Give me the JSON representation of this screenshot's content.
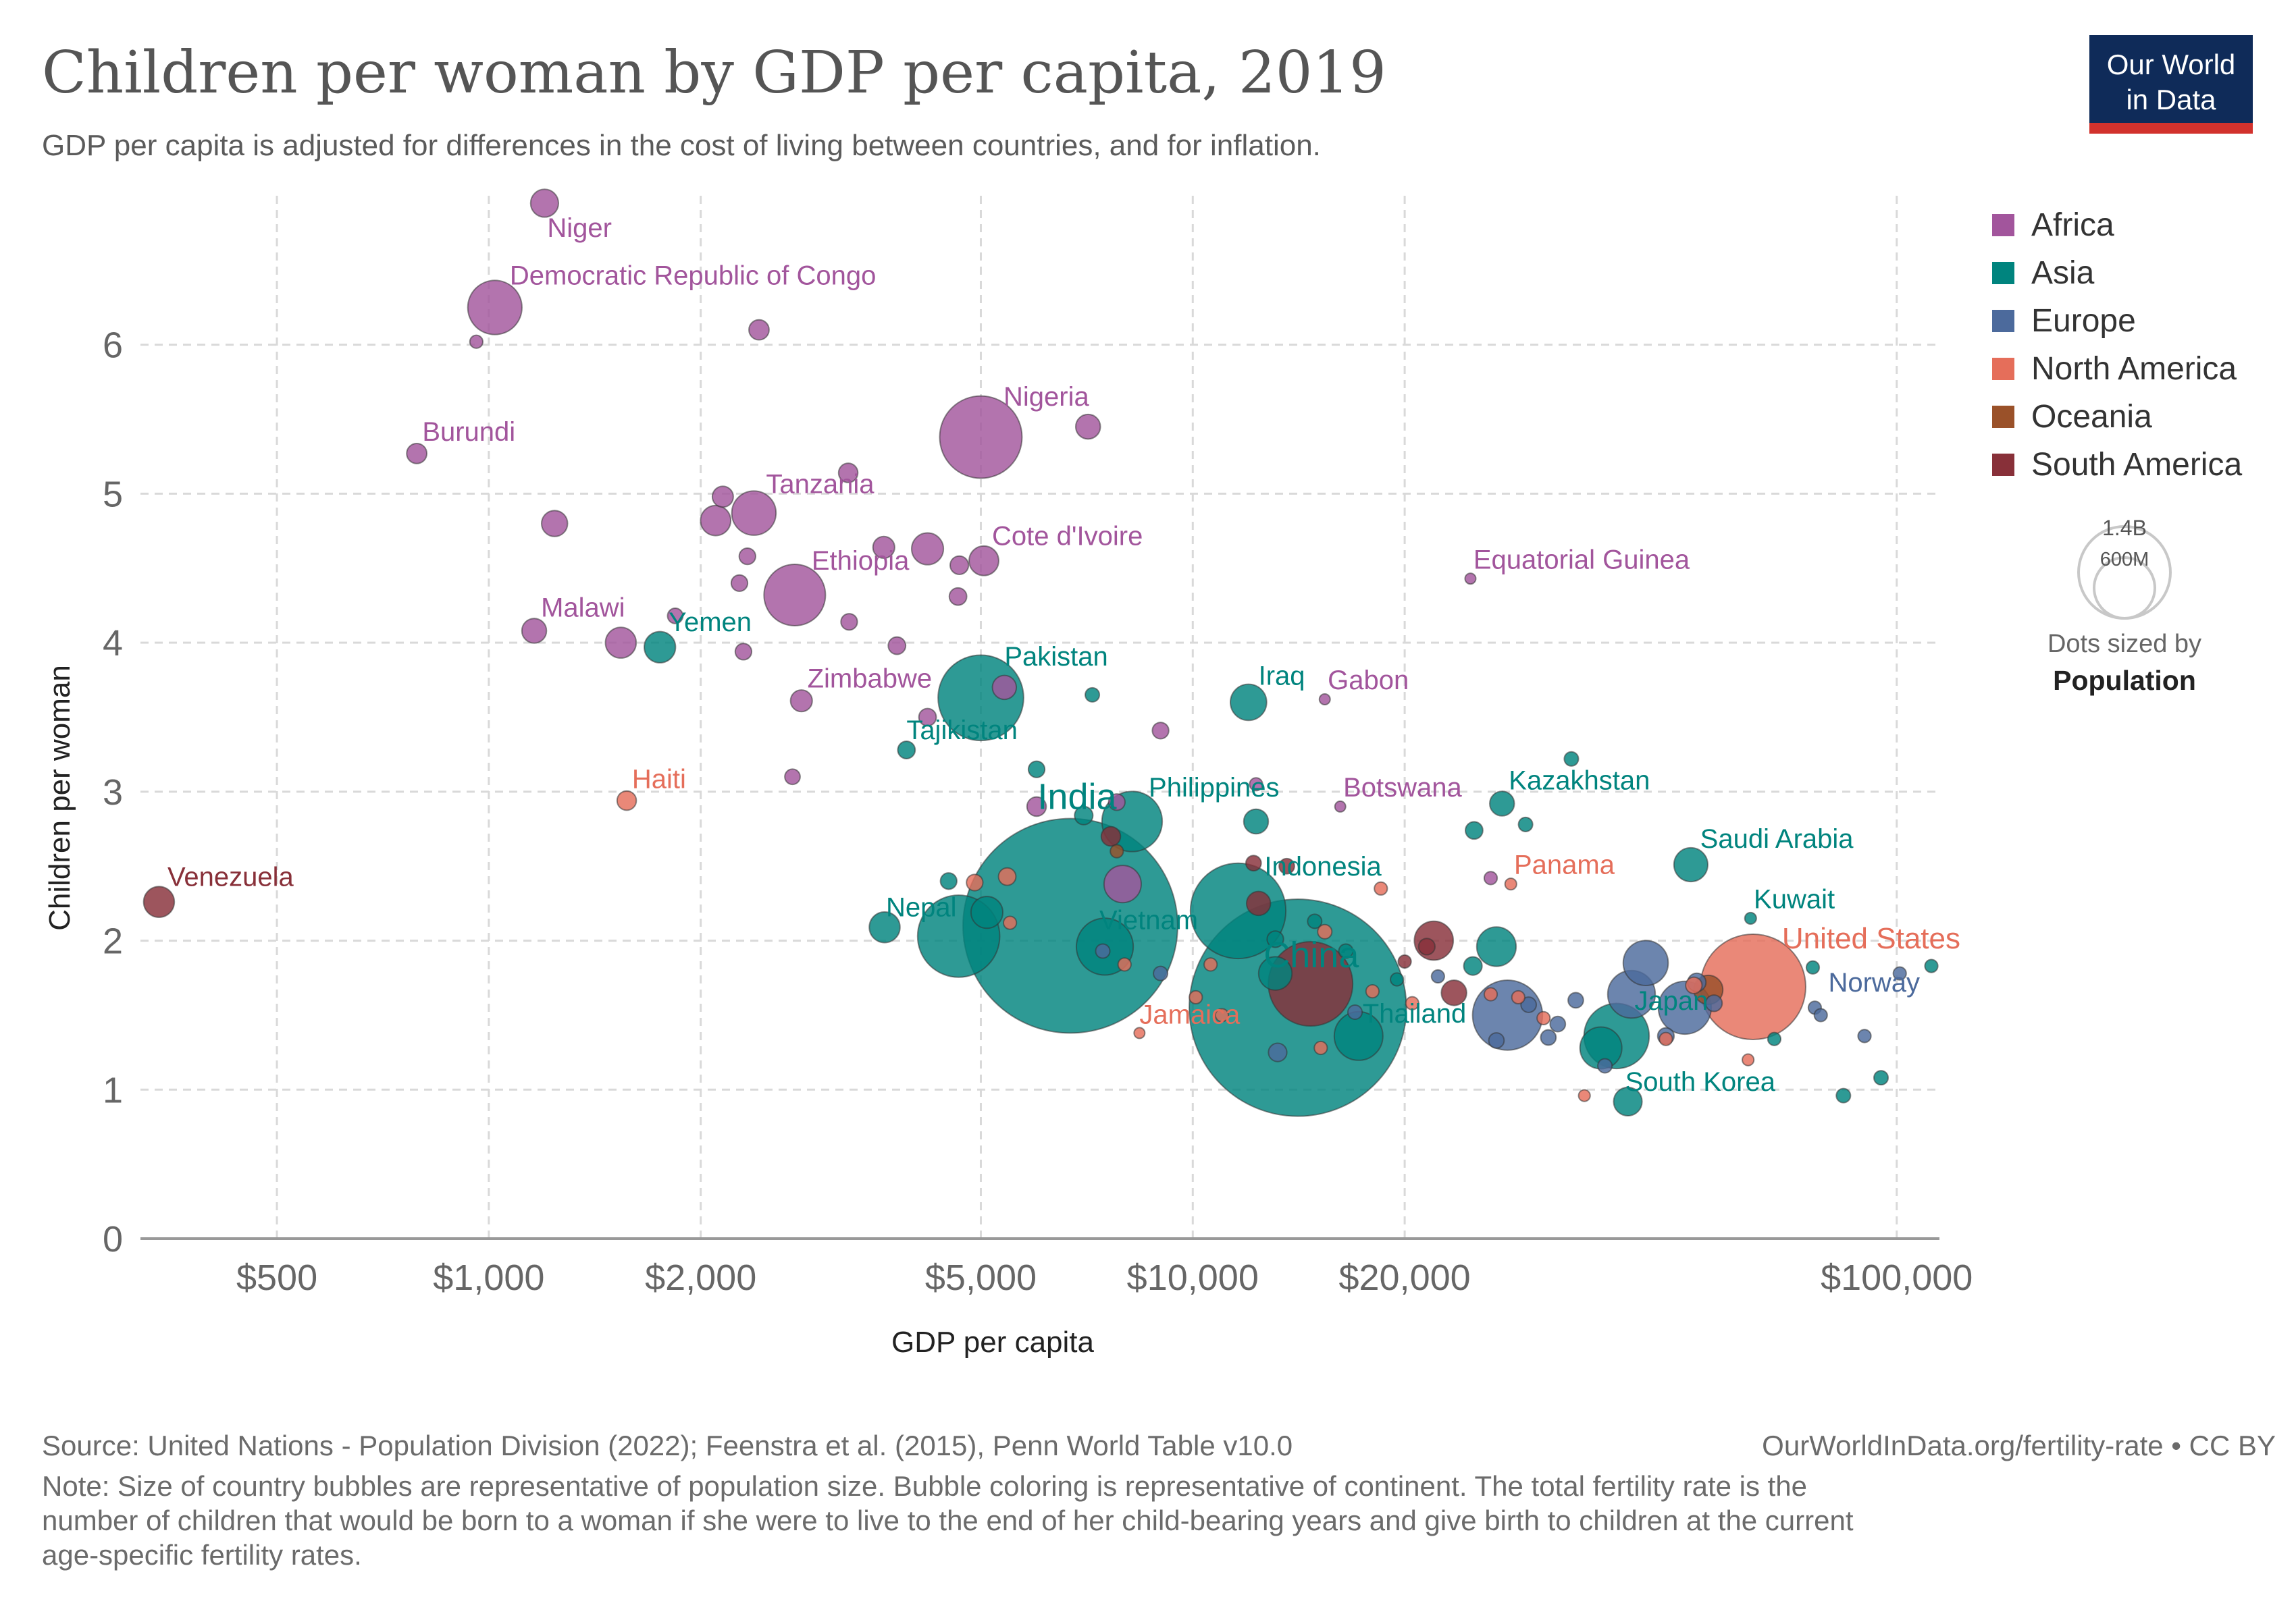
{
  "header": {
    "title": "Children per woman by GDP per capita, 2019",
    "subtitle": "GDP per capita is adjusted for differences in the cost of living between countries, and for inflation."
  },
  "logo": {
    "line1": "Our World",
    "line2": "in Data",
    "bg": "#0f2b59",
    "stripe": "#d2322d"
  },
  "footer": {
    "source": "Source: United Nations - Population Division (2022); Feenstra et al. (2015), Penn World Table v10.0",
    "url": "OurWorldInData.org/fertility-rate • CC BY",
    "note_line1": "Note: Size of country bubbles are representative of population size. Bubble coloring is representative of continent. The total fertility rate is the",
    "note_line2": "number of children that would be born to a woman if she were to live to the end of her child-bearing years and give birth to children at the current",
    "note_line3": "age-specific fertility rates."
  },
  "size_legend": {
    "big": "1.4B",
    "small": "600M",
    "caption1": "Dots sized by",
    "caption2": "Population"
  },
  "chart_data": {
    "type": "scatter",
    "title": "Children per woman by GDP per capita, 2019",
    "xlabel": "GDP per capita",
    "ylabel": "Children per woman",
    "x_scale": "log",
    "xlim": [
      320,
      115000
    ],
    "ylim": [
      0,
      7
    ],
    "x_ticks": [
      500,
      1000,
      2000,
      5000,
      10000,
      20000,
      100000
    ],
    "x_tick_labels": [
      "$500",
      "$1,000",
      "$2,000",
      "$5,000",
      "$10,000",
      "$20,000",
      "$100,000"
    ],
    "y_ticks": [
      0,
      1,
      2,
      3,
      4,
      5,
      6
    ],
    "y_tick_labels": [
      "0",
      "1",
      "2",
      "3",
      "4",
      "5",
      "6"
    ],
    "grid": true,
    "legend_position": "right",
    "continents": [
      {
        "name": "Africa",
        "color": "#a2559c"
      },
      {
        "name": "Asia",
        "color": "#00847e"
      },
      {
        "name": "Europe",
        "color": "#4c6a9c"
      },
      {
        "name": "North America",
        "color": "#e56e5a"
      },
      {
        "name": "Oceania",
        "color": "#9a5129"
      },
      {
        "name": "South America",
        "color": "#883039"
      }
    ],
    "points": [
      {
        "label": "Niger",
        "continent": "Africa",
        "x": 1200,
        "y": 6.95,
        "pop": 23
      },
      {
        "label": "Democratic Republic of Congo",
        "continent": "Africa",
        "x": 1020,
        "y": 6.25,
        "pop": 87
      },
      {
        "label": "",
        "continent": "Africa",
        "x": 960,
        "y": 6.02,
        "pop": 5
      },
      {
        "label": "",
        "continent": "Africa",
        "x": 2420,
        "y": 6.1,
        "pop": 12
      },
      {
        "label": "Burundi",
        "continent": "Africa",
        "x": 790,
        "y": 5.27,
        "pop": 12
      },
      {
        "label": "Nigeria",
        "continent": "Africa",
        "x": 5000,
        "y": 5.38,
        "pop": 201
      },
      {
        "label": "",
        "continent": "Africa",
        "x": 7100,
        "y": 5.45,
        "pop": 18
      },
      {
        "label": "",
        "continent": "Africa",
        "x": 1240,
        "y": 4.8,
        "pop": 20
      },
      {
        "label": "",
        "continent": "Africa",
        "x": 2150,
        "y": 4.98,
        "pop": 13
      },
      {
        "label": "",
        "continent": "Africa",
        "x": 3240,
        "y": 5.14,
        "pop": 11
      },
      {
        "label": "Tanzania",
        "continent": "Africa",
        "x": 2380,
        "y": 4.87,
        "pop": 58
      },
      {
        "label": "",
        "continent": "Africa",
        "x": 2100,
        "y": 4.82,
        "pop": 27
      },
      {
        "label": "",
        "continent": "Africa",
        "x": 2330,
        "y": 4.58,
        "pop": 8
      },
      {
        "label": "",
        "continent": "Africa",
        "x": 3640,
        "y": 4.64,
        "pop": 14
      },
      {
        "label": "",
        "continent": "Africa",
        "x": 4200,
        "y": 4.63,
        "pop": 30
      },
      {
        "label": "Cote d'Ivoire",
        "continent": "Africa",
        "x": 5050,
        "y": 4.55,
        "pop": 26
      },
      {
        "label": "",
        "continent": "Africa",
        "x": 4660,
        "y": 4.52,
        "pop": 10
      },
      {
        "label": "",
        "continent": "Africa",
        "x": 2270,
        "y": 4.4,
        "pop": 8
      },
      {
        "label": "Ethiopia",
        "continent": "Africa",
        "x": 2720,
        "y": 4.32,
        "pop": 112
      },
      {
        "label": "",
        "continent": "Africa",
        "x": 4640,
        "y": 4.31,
        "pop": 9
      },
      {
        "label": "Malawi",
        "continent": "Africa",
        "x": 1160,
        "y": 4.08,
        "pop": 18
      },
      {
        "label": "",
        "continent": "Africa",
        "x": 1540,
        "y": 4.0,
        "pop": 28
      },
      {
        "label": "",
        "continent": "Africa",
        "x": 3250,
        "y": 4.14,
        "pop": 8
      },
      {
        "label": "",
        "continent": "Africa",
        "x": 3800,
        "y": 3.98,
        "pop": 9
      },
      {
        "label": "",
        "continent": "Africa",
        "x": 2300,
        "y": 3.94,
        "pop": 8
      },
      {
        "label": "",
        "continent": "Africa",
        "x": 1840,
        "y": 4.18,
        "pop": 7
      },
      {
        "label": "Zimbabwe",
        "continent": "Africa",
        "x": 2780,
        "y": 3.61,
        "pop": 14
      },
      {
        "label": "",
        "continent": "Africa",
        "x": 4200,
        "y": 3.5,
        "pop": 9
      },
      {
        "label": "",
        "continent": "Africa",
        "x": 5400,
        "y": 3.7,
        "pop": 17
      },
      {
        "label": "",
        "continent": "Africa",
        "x": 9000,
        "y": 3.41,
        "pop": 8
      },
      {
        "label": "Gabon",
        "continent": "Africa",
        "x": 15400,
        "y": 3.62,
        "pop": 2
      },
      {
        "label": "Equatorial Guinea",
        "continent": "Africa",
        "x": 24800,
        "y": 4.43,
        "pop": 1.4
      },
      {
        "label": "",
        "continent": "Africa",
        "x": 2700,
        "y": 3.1,
        "pop": 7
      },
      {
        "label": "",
        "continent": "Africa",
        "x": 6000,
        "y": 2.9,
        "pop": 11
      },
      {
        "label": "",
        "continent": "Africa",
        "x": 7800,
        "y": 2.93,
        "pop": 8
      },
      {
        "label": "Botswana",
        "continent": "Africa",
        "x": 16200,
        "y": 2.9,
        "pop": 2.3
      },
      {
        "label": "",
        "continent": "Africa",
        "x": 7950,
        "y": 2.38,
        "pop": 41
      },
      {
        "label": "",
        "continent": "Africa",
        "x": 26500,
        "y": 2.42,
        "pop": 5
      },
      {
        "label": "",
        "continent": "Africa",
        "x": 12300,
        "y": 3.05,
        "pop": 5
      },
      {
        "label": "Yemen",
        "continent": "Asia",
        "x": 1750,
        "y": 3.97,
        "pop": 29
      },
      {
        "label": "Pakistan",
        "continent": "Asia",
        "x": 5000,
        "y": 3.63,
        "pop": 217
      },
      {
        "label": "",
        "continent": "Asia",
        "x": 7200,
        "y": 3.65,
        "pop": 6
      },
      {
        "label": "Iraq",
        "continent": "Asia",
        "x": 12000,
        "y": 3.6,
        "pop": 39
      },
      {
        "label": "Tajikistan",
        "continent": "Asia",
        "x": 3920,
        "y": 3.28,
        "pop": 9
      },
      {
        "label": "",
        "continent": "Asia",
        "x": 6000,
        "y": 3.15,
        "pop": 8
      },
      {
        "label": "Philippines",
        "continent": "Asia",
        "x": 8200,
        "y": 2.8,
        "pop": 108
      },
      {
        "label": "",
        "continent": "Asia",
        "x": 7000,
        "y": 2.84,
        "pop": 10
      },
      {
        "label": "",
        "continent": "Asia",
        "x": 12300,
        "y": 2.8,
        "pop": 18
      },
      {
        "label": "Kazakhstan",
        "continent": "Asia",
        "x": 27500,
        "y": 2.92,
        "pop": 18
      },
      {
        "label": "",
        "continent": "Asia",
        "x": 34500,
        "y": 3.22,
        "pop": 6
      },
      {
        "label": "",
        "continent": "Asia",
        "x": 25100,
        "y": 2.74,
        "pop": 9
      },
      {
        "label": "",
        "continent": "Asia",
        "x": 29700,
        "y": 2.78,
        "pop": 6
      },
      {
        "label": "Saudi Arabia",
        "continent": "Asia",
        "x": 51000,
        "y": 2.51,
        "pop": 34
      },
      {
        "label": "Kuwait",
        "continent": "Asia",
        "x": 62000,
        "y": 2.15,
        "pop": 4
      },
      {
        "label": "Nepal",
        "continent": "Asia",
        "x": 3650,
        "y": 2.09,
        "pop": 28
      },
      {
        "label": "",
        "continent": "Asia",
        "x": 4650,
        "y": 2.03,
        "pop": 200
      },
      {
        "label": "",
        "continent": "Asia",
        "x": 5100,
        "y": 2.19,
        "pop": 30
      },
      {
        "label": "",
        "continent": "Asia",
        "x": 4500,
        "y": 2.4,
        "pop": 8
      },
      {
        "label": "India",
        "continent": "Asia",
        "x": 6700,
        "y": 2.1,
        "pop": 1366
      },
      {
        "label": "Vietnam",
        "continent": "Asia",
        "x": 7500,
        "y": 1.96,
        "pop": 96
      },
      {
        "label": "Indonesia",
        "continent": "Asia",
        "x": 11600,
        "y": 2.2,
        "pop": 270
      },
      {
        "label": "",
        "continent": "Asia",
        "x": 13100,
        "y": 2.01,
        "pop": 8
      },
      {
        "label": "",
        "continent": "Asia",
        "x": 14900,
        "y": 2.13,
        "pop": 6
      },
      {
        "label": "China",
        "continent": "Asia",
        "x": 14100,
        "y": 1.55,
        "pop": 1398
      },
      {
        "label": "",
        "continent": "Asia",
        "x": 13100,
        "y": 1.78,
        "pop": 33
      },
      {
        "label": "",
        "continent": "Asia",
        "x": 16500,
        "y": 1.93,
        "pop": 6
      },
      {
        "label": "Thailand",
        "continent": "Asia",
        "x": 17200,
        "y": 1.36,
        "pop": 70
      },
      {
        "label": "",
        "continent": "Asia",
        "x": 19500,
        "y": 1.74,
        "pop": 5
      },
      {
        "label": "",
        "continent": "Asia",
        "x": 27000,
        "y": 1.96,
        "pop": 46
      },
      {
        "label": "",
        "continent": "Asia",
        "x": 25000,
        "y": 1.83,
        "pop": 10
      },
      {
        "label": "Japan",
        "continent": "Asia",
        "x": 40000,
        "y": 1.36,
        "pop": 126
      },
      {
        "label": "",
        "continent": "Asia",
        "x": 38000,
        "y": 1.28,
        "pop": 52
      },
      {
        "label": "South Korea",
        "continent": "Asia",
        "x": 41500,
        "y": 0.92,
        "pop": 24
      },
      {
        "label": "",
        "continent": "Asia",
        "x": 84000,
        "y": 0.96,
        "pop": 6
      },
      {
        "label": "",
        "continent": "Asia",
        "x": 95000,
        "y": 1.08,
        "pop": 6
      },
      {
        "label": "",
        "continent": "Asia",
        "x": 67000,
        "y": 1.34,
        "pop": 5
      },
      {
        "label": "",
        "continent": "Asia",
        "x": 76000,
        "y": 1.82,
        "pop": 5
      },
      {
        "label": "",
        "continent": "Asia",
        "x": 112000,
        "y": 1.83,
        "pop": 5
      },
      {
        "label": "",
        "continent": "Europe",
        "x": 9000,
        "y": 1.78,
        "pop": 6
      },
      {
        "label": "",
        "continent": "Europe",
        "x": 7450,
        "y": 1.93,
        "pop": 6
      },
      {
        "label": "",
        "continent": "Europe",
        "x": 13200,
        "y": 1.25,
        "pop": 10
      },
      {
        "label": "",
        "continent": "Europe",
        "x": 17000,
        "y": 1.52,
        "pop": 6
      },
      {
        "label": "",
        "continent": "Europe",
        "x": 22300,
        "y": 1.76,
        "pop": 5
      },
      {
        "label": "",
        "continent": "Europe",
        "x": 28000,
        "y": 1.5,
        "pop": 145
      },
      {
        "label": "",
        "continent": "Europe",
        "x": 30000,
        "y": 1.57,
        "pop": 7
      },
      {
        "label": "",
        "continent": "Europe",
        "x": 33000,
        "y": 1.44,
        "pop": 7
      },
      {
        "label": "",
        "continent": "Europe",
        "x": 35000,
        "y": 1.6,
        "pop": 7
      },
      {
        "label": "",
        "continent": "Europe",
        "x": 42000,
        "y": 1.64,
        "pop": 67
      },
      {
        "label": "",
        "continent": "Europe",
        "x": 44000,
        "y": 1.85,
        "pop": 60
      },
      {
        "label": "",
        "continent": "Europe",
        "x": 50000,
        "y": 1.55,
        "pop": 83
      },
      {
        "label": "",
        "continent": "Europe",
        "x": 52000,
        "y": 1.72,
        "pop": 10
      },
      {
        "label": "",
        "continent": "Europe",
        "x": 55000,
        "y": 1.58,
        "pop": 8
      },
      {
        "label": "",
        "continent": "Europe",
        "x": 47000,
        "y": 1.36,
        "pop": 8
      },
      {
        "label": "",
        "continent": "Europe",
        "x": 38500,
        "y": 1.16,
        "pop": 6
      },
      {
        "label": "",
        "continent": "Europe",
        "x": 27000,
        "y": 1.33,
        "pop": 7
      },
      {
        "label": "",
        "continent": "Europe",
        "x": 32000,
        "y": 1.35,
        "pop": 7
      },
      {
        "label": "Norway",
        "continent": "Europe",
        "x": 76500,
        "y": 1.55,
        "pop": 5
      },
      {
        "label": "",
        "continent": "Europe",
        "x": 78000,
        "y": 1.5,
        "pop": 5
      },
      {
        "label": "",
        "continent": "Europe",
        "x": 90000,
        "y": 1.36,
        "pop": 5
      },
      {
        "label": "",
        "continent": "Europe",
        "x": 101000,
        "y": 1.78,
        "pop": 5
      },
      {
        "label": "Haiti",
        "continent": "North America",
        "x": 1570,
        "y": 2.94,
        "pop": 11
      },
      {
        "label": "",
        "continent": "North America",
        "x": 4900,
        "y": 2.39,
        "pop": 8
      },
      {
        "label": "",
        "continent": "North America",
        "x": 5450,
        "y": 2.43,
        "pop": 9
      },
      {
        "label": "",
        "continent": "North America",
        "x": 5500,
        "y": 2.12,
        "pop": 5
      },
      {
        "label": "Jamaica",
        "continent": "North America",
        "x": 8400,
        "y": 1.38,
        "pop": 3
      },
      {
        "label": "",
        "continent": "North America",
        "x": 8000,
        "y": 1.84,
        "pop": 5
      },
      {
        "label": "",
        "continent": "North America",
        "x": 10100,
        "y": 1.62,
        "pop": 5
      },
      {
        "label": "",
        "continent": "North America",
        "x": 10600,
        "y": 1.84,
        "pop": 5
      },
      {
        "label": "",
        "continent": "North America",
        "x": 11000,
        "y": 1.5,
        "pop": 5
      },
      {
        "label": "",
        "continent": "North America",
        "x": 15200,
        "y": 1.28,
        "pop": 5
      },
      {
        "label": "",
        "continent": "North America",
        "x": 15400,
        "y": 2.06,
        "pop": 6
      },
      {
        "label": "",
        "continent": "North America",
        "x": 18000,
        "y": 1.66,
        "pop": 5
      },
      {
        "label": "",
        "continent": "North America",
        "x": 18500,
        "y": 2.35,
        "pop": 5
      },
      {
        "label": "",
        "continent": "North America",
        "x": 20500,
        "y": 1.58,
        "pop": 5
      },
      {
        "label": "Panama",
        "continent": "North America",
        "x": 28300,
        "y": 2.38,
        "pop": 4
      },
      {
        "label": "",
        "continent": "North America",
        "x": 26500,
        "y": 1.64,
        "pop": 5
      },
      {
        "label": "",
        "continent": "North America",
        "x": 29000,
        "y": 1.62,
        "pop": 5
      },
      {
        "label": "",
        "continent": "North America",
        "x": 31500,
        "y": 1.48,
        "pop": 5
      },
      {
        "label": "",
        "continent": "North America",
        "x": 36000,
        "y": 0.96,
        "pop": 4
      },
      {
        "label": "",
        "continent": "North America",
        "x": 47000,
        "y": 1.34,
        "pop": 5
      },
      {
        "label": "",
        "continent": "North America",
        "x": 51500,
        "y": 1.7,
        "pop": 8
      },
      {
        "label": "",
        "continent": "North America",
        "x": 61500,
        "y": 1.2,
        "pop": 4
      },
      {
        "label": "United States",
        "continent": "North America",
        "x": 62500,
        "y": 1.69,
        "pop": 329
      },
      {
        "label": "",
        "continent": "Oceania",
        "x": 54000,
        "y": 1.67,
        "pop": 25
      },
      {
        "label": "",
        "continent": "Oceania",
        "x": 7800,
        "y": 2.6,
        "pop": 5
      },
      {
        "label": "Venezuela",
        "continent": "South America",
        "x": 340,
        "y": 2.26,
        "pop": 28
      },
      {
        "label": "",
        "continent": "South America",
        "x": 7650,
        "y": 2.7,
        "pop": 11
      },
      {
        "label": "",
        "continent": "South America",
        "x": 12200,
        "y": 2.52,
        "pop": 7
      },
      {
        "label": "",
        "continent": "South America",
        "x": 13600,
        "y": 2.5,
        "pop": 7
      },
      {
        "label": "",
        "continent": "South America",
        "x": 12400,
        "y": 2.25,
        "pop": 17
      },
      {
        "label": "",
        "continent": "South America",
        "x": 14700,
        "y": 1.71,
        "pop": 211
      },
      {
        "label": "",
        "continent": "South America",
        "x": 22000,
        "y": 2.0,
        "pop": 45
      },
      {
        "label": "",
        "continent": "South America",
        "x": 21500,
        "y": 1.96,
        "pop": 8
      },
      {
        "label": "",
        "continent": "South America",
        "x": 23500,
        "y": 1.65,
        "pop": 19
      },
      {
        "label": "",
        "continent": "South America",
        "x": 20000,
        "y": 1.86,
        "pop": 5
      }
    ]
  }
}
